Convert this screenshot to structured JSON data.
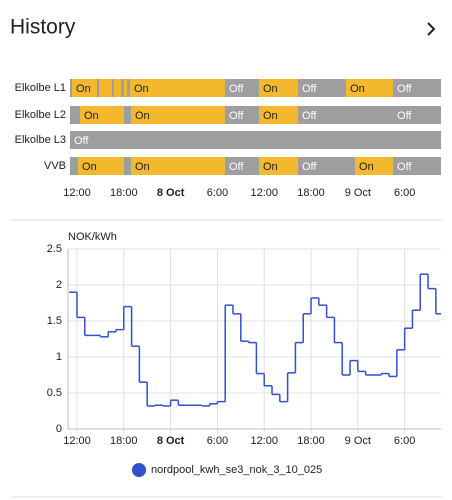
{
  "header": {
    "title": "History"
  },
  "chart_data": [
    {
      "type": "timeline",
      "xlim": [
        11.1,
        58.66
      ],
      "xticks": [
        {
          "value": 12,
          "label": "12:00"
        },
        {
          "value": 18,
          "label": "18:00"
        },
        {
          "value": 24,
          "label": "8 Oct"
        },
        {
          "value": 30,
          "label": "6:00"
        },
        {
          "value": 36,
          "label": "12:00"
        },
        {
          "value": 42,
          "label": "18:00"
        },
        {
          "value": 48,
          "label": "9 Oct"
        },
        {
          "value": 54,
          "label": "6:00"
        }
      ],
      "colors": {
        "On": "#f4b82e",
        "Off": "#9e9e9e"
      },
      "rows": [
        {
          "name": "Elkolbe L1",
          "segments": [
            {
              "state": "Off",
              "start": 11.1,
              "end": 11.36
            },
            {
              "state": "On",
              "start": 11.36,
              "end": 14.56
            },
            {
              "state": "Off",
              "start": 14.56,
              "end": 14.82
            },
            {
              "state": "On",
              "start": 14.82,
              "end": 16.48
            },
            {
              "state": "Off",
              "start": 16.48,
              "end": 16.74
            },
            {
              "state": "On",
              "start": 16.74,
              "end": 17.64
            },
            {
              "state": "Off",
              "start": 17.64,
              "end": 18.02
            },
            {
              "state": "On",
              "start": 18.02,
              "end": 18.41
            },
            {
              "state": "Off",
              "start": 18.41,
              "end": 18.79
            },
            {
              "state": "On",
              "start": 18.79,
              "end": 30.97
            },
            {
              "state": "Off",
              "start": 30.97,
              "end": 35.33
            },
            {
              "state": "On",
              "start": 35.33,
              "end": 40.33
            },
            {
              "state": "Off",
              "start": 40.33,
              "end": 46.49
            },
            {
              "state": "On",
              "start": 46.49,
              "end": 52.51
            },
            {
              "state": "Off",
              "start": 52.51,
              "end": 58.66
            }
          ]
        },
        {
          "name": "Elkolbe L2",
          "segments": [
            {
              "state": "Off",
              "start": 11.1,
              "end": 12.38
            },
            {
              "state": "On",
              "start": 12.38,
              "end": 18.02
            },
            {
              "state": "Off",
              "start": 18.02,
              "end": 18.92
            },
            {
              "state": "On",
              "start": 18.92,
              "end": 30.97
            },
            {
              "state": "Off",
              "start": 30.97,
              "end": 35.33
            },
            {
              "state": "On",
              "start": 35.33,
              "end": 40.33
            },
            {
              "state": "Off",
              "start": 40.33,
              "end": 52.51
            },
            {
              "state": "Off",
              "start": 52.51,
              "end": 58.66
            }
          ]
        },
        {
          "name": "Elkolbe L3",
          "segments": [
            {
              "state": "Off",
              "start": 11.1,
              "end": 58.66
            }
          ]
        },
        {
          "name": "VVB",
          "segments": [
            {
              "state": "Off",
              "start": 11.1,
              "end": 12.13
            },
            {
              "state": "On",
              "start": 12.13,
              "end": 18.02
            },
            {
              "state": "Off",
              "start": 18.02,
              "end": 18.92
            },
            {
              "state": "On",
              "start": 18.92,
              "end": 30.97
            },
            {
              "state": "Off",
              "start": 30.97,
              "end": 35.33
            },
            {
              "state": "On",
              "start": 35.33,
              "end": 40.33
            },
            {
              "state": "Off",
              "start": 40.33,
              "end": 47.64
            },
            {
              "state": "On",
              "start": 47.64,
              "end": 52.51
            },
            {
              "state": "Off",
              "start": 52.51,
              "end": 58.66
            }
          ]
        }
      ]
    },
    {
      "type": "step",
      "y_label": "NOK/kWh",
      "xlim": [
        10.85,
        58.66
      ],
      "xticks": [
        {
          "value": 12,
          "label": "12:00"
        },
        {
          "value": 18,
          "label": "18:00"
        },
        {
          "value": 24,
          "label": "8 Oct"
        },
        {
          "value": 30,
          "label": "6:00"
        },
        {
          "value": 36,
          "label": "12:00"
        },
        {
          "value": 42,
          "label": "18:00"
        },
        {
          "value": 48,
          "label": "9 Oct"
        },
        {
          "value": 54,
          "label": "6:00"
        }
      ],
      "ylim": [
        0,
        2.5
      ],
      "yticks": [
        0,
        0.5,
        1,
        1.5,
        2,
        2.5
      ],
      "grid": true,
      "x": [
        11,
        12,
        13,
        14,
        15,
        16,
        17,
        18,
        19,
        20,
        21,
        22,
        23,
        24,
        25,
        26,
        27,
        28,
        29,
        30,
        31,
        32,
        33,
        34,
        35,
        36,
        37,
        38,
        39,
        40,
        41,
        42,
        43,
        44,
        45,
        46,
        47,
        48,
        49,
        50,
        51,
        52,
        53,
        54,
        55,
        56,
        57,
        58
      ],
      "series": [
        {
          "name": "nordpool_kwh_se3_nok_3_10_025",
          "color": "#3050cc",
          "values": [
            1.9,
            1.55,
            1.3,
            1.3,
            1.28,
            1.35,
            1.38,
            1.7,
            1.15,
            0.65,
            0.32,
            0.33,
            0.32,
            0.4,
            0.33,
            0.33,
            0.33,
            0.32,
            0.35,
            0.38,
            1.72,
            1.6,
            1.22,
            1.2,
            0.77,
            0.6,
            0.48,
            0.38,
            0.78,
            1.2,
            1.6,
            1.82,
            1.72,
            1.55,
            1.2,
            0.75,
            0.95,
            0.8,
            0.75,
            0.75,
            0.77,
            0.73,
            1.1,
            1.4,
            1.65,
            2.15,
            1.95,
            1.6
          ]
        }
      ]
    }
  ]
}
